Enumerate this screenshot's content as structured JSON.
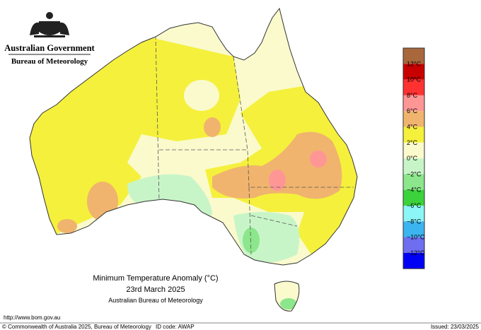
{
  "header": {
    "agency": "Australian Government",
    "bureau": "Bureau of Meteorology"
  },
  "title": {
    "line1": "Minimum Temperature Anomaly (°C)",
    "line2": "23rd March 2025",
    "line3": "Australian Bureau of Meteorology"
  },
  "legend": {
    "labels": [
      "12°C",
      "10°C",
      "8°C",
      "6°C",
      "4°C",
      "2°C",
      "0°C",
      "−2°C",
      "−4°C",
      "−6°C",
      "−8°C",
      "−10°C",
      "−12°C"
    ],
    "colors": [
      "#a8683c",
      "#c80000",
      "#ff3232",
      "#ff9696",
      "#f0b46e",
      "#f5f03c",
      "#fafacd",
      "#c8f5c8",
      "#8ce68c",
      "#3cd23c",
      "#8cf5f5",
      "#3cb4f0",
      "#6e6ef0",
      "#0000f5"
    ]
  },
  "footer": {
    "url": "http://www.bom.gov.au",
    "copyright": "© Commonwealth of Australia 2025, Bureau of Meteorology",
    "id_code": "ID code: AWAP",
    "issued": "Issued: 23/03/2025"
  }
}
